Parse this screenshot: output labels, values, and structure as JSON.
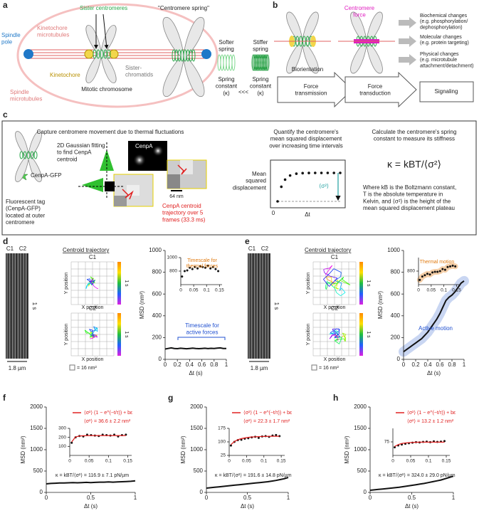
{
  "figure": {
    "a": {
      "letter": "a",
      "spindle_pole": [
        "Spindle",
        "pole"
      ],
      "kinetochore_microtubules": [
        "Kinetochore",
        "microtubules"
      ],
      "sister_centromeres": "Sister centromeres",
      "kinetochore": "Kinetochore",
      "sister_chromatids": [
        "Sister-",
        "chromatids"
      ],
      "mitotic_chromosome": "Mitotic chromosome",
      "spindle_microtubules": [
        "Spindle",
        "microtubules"
      ],
      "centromere_spring": "\"Centromere spring\"",
      "softer_spring": [
        "Softer",
        "spring"
      ],
      "stiffer_spring": [
        "Stiffer",
        "spring"
      ],
      "spring_constant_1": [
        "Spring",
        "constant",
        "(κ)"
      ],
      "less_than": "<<<",
      "spring_constant_2": [
        "Spring",
        "constant",
        "(κ)"
      ]
    },
    "b": {
      "letter": "b",
      "centromere_force": [
        "Centromere",
        "force"
      ],
      "biorientation": "Biorientation",
      "force_transmission": [
        "Force",
        "transmission"
      ],
      "force_transduction": [
        "Force",
        "transduction"
      ],
      "signaling": "Signaling",
      "biochemical": [
        "Biochemical changes",
        "(e.g. phosphorylation/",
        "dephosphorylation)"
      ],
      "molecular": [
        "Molecular changes",
        "(e.g. protein targeting)"
      ],
      "physical": [
        "Physical changes",
        "(e.g. microtubule",
        "attachment/detachment)"
      ]
    },
    "c": {
      "letter": "c",
      "capture": "Capture centromere movement due to thermal fluctuations",
      "gaussian": [
        "2D Gaussian fitting",
        "to find CenpA",
        "centroid"
      ],
      "cenpa": "CenpA",
      "cenpa_gfp": "CenpA-GFP",
      "fluorescent": [
        "Fluorescent tag",
        "(CenpA-GFP)",
        "located at outer",
        "centromere"
      ],
      "scale": "64 nm",
      "trajectory": [
        "CenpA centroid",
        "trajectory over 5",
        "frames (33.3 ms)"
      ],
      "quantify": [
        "Quantify the centromere's",
        "mean squared displacement",
        "over increasing time intervals"
      ],
      "msd_axis": [
        "Mean",
        "squared",
        "displacement"
      ],
      "plateau": "⟨σ²⟩",
      "origin": "0",
      "dt": "Δt",
      "calculate": [
        "Calculate the centromere's spring",
        "constant to measure its stiffness"
      ],
      "formula": "κ = kBT/⟨σ²⟩",
      "where": [
        "Where kB is the Boltzmann constant,",
        "T is the absolute temperature in",
        "Kelvin, and ⟨σ²⟩ is the height of the",
        "mean squared displacement plateau"
      ]
    },
    "d": {
      "letter": "d",
      "c1": "C1",
      "c2": "C2",
      "time": "1 s",
      "width": "1.8 µm",
      "centroid": "Centroid trajectory",
      "t1": "C1",
      "t2": "C2",
      "ypos1": "Y position",
      "xpos1": "X position",
      "ypos2": "Y position",
      "xpos2": "X position",
      "cbar1": "1 s",
      "cbar2": "1 s",
      "grid_unit": "= 16 nm²"
    },
    "e": {
      "letter": "e",
      "c1": "C1",
      "c2": "C2",
      "time": "1 s",
      "width": "1.8 µm",
      "centroid": "Centroid trajectory",
      "t1": "C1",
      "t2": "C2",
      "ypos1": "Y position",
      "xpos1": "X position",
      "ypos2": "Y position",
      "xpos2": "X position",
      "cbar1": "1 s",
      "cbar2": "1 s",
      "grid_unit": "= 16 nm²"
    },
    "f": {
      "letter": "f"
    },
    "g": {
      "letter": "g"
    },
    "h": {
      "letter": "h"
    }
  },
  "chart_data": [
    {
      "type": "line",
      "xlabel": "Δt (s)",
      "ylabel": "MSD (nm²)",
      "xlim": [
        0,
        1
      ],
      "ylim": [
        0,
        1000
      ],
      "xticks": [
        0,
        0.2,
        0.4,
        0.6,
        0.8,
        1
      ],
      "yticks": [
        0,
        200,
        400,
        600,
        800,
        1000
      ],
      "x": [
        0,
        0.05,
        0.1,
        0.15,
        0.2,
        0.25,
        0.3,
        0.35,
        0.4,
        0.45,
        0.5,
        0.55,
        0.6,
        0.65,
        0.7,
        0.75,
        0.8,
        0.85,
        0.9,
        0.95,
        1
      ],
      "series": [
        {
          "color": "#111111",
          "values": [
            95,
            100,
            105,
            100,
            98,
            102,
            100,
            97,
            100,
            103,
            100,
            98,
            100,
            102,
            99,
            101,
            100,
            103,
            105,
            100,
            100
          ]
        }
      ],
      "annotations": [
        [
          "Timescale for",
          "active forces"
        ]
      ]
    },
    {
      "type": "scatter",
      "xlim": [
        0,
        0.16
      ],
      "ylim": [
        600,
        1000
      ],
      "xticks": [
        0,
        0.05,
        0.1,
        0.15
      ],
      "yticks": [
        800,
        1000
      ],
      "x": [
        0.005,
        0.015,
        0.025,
        0.035,
        0.045,
        0.055,
        0.065,
        0.075,
        0.085,
        0.095,
        0.105,
        0.115,
        0.125,
        0.135,
        0.145
      ],
      "series": [
        {
          "color": "#111111",
          "values": [
            720,
            800,
            810,
            850,
            830,
            860,
            840,
            870,
            860,
            850,
            880,
            840,
            860,
            830,
            800
          ]
        }
      ],
      "annotations": [
        [
          "Timescale for",
          "thermal forces"
        ]
      ]
    },
    {
      "type": "line",
      "xlabel": "Δt (s)",
      "ylabel": "MSD (nm²)",
      "xlim": [
        0,
        1
      ],
      "ylim": [
        0,
        1000
      ],
      "xticks": [
        0,
        0.2,
        0.4,
        0.6,
        0.8,
        1
      ],
      "yticks": [
        0,
        200,
        400,
        600,
        800,
        1000
      ],
      "highlight": "#c9d6f2",
      "x": [
        0,
        0.05,
        0.1,
        0.15,
        0.2,
        0.25,
        0.3,
        0.35,
        0.4,
        0.45,
        0.5,
        0.55,
        0.6,
        0.65,
        0.7,
        0.75,
        0.8,
        0.85,
        0.9,
        0.95,
        1
      ],
      "series": [
        {
          "color": "#111111",
          "values": [
            70,
            90,
            110,
            130,
            150,
            170,
            190,
            220,
            250,
            290,
            330,
            370,
            420,
            480,
            540,
            570,
            590,
            620,
            660,
            700,
            720
          ]
        }
      ],
      "annotations": [
        "Active motion"
      ]
    },
    {
      "type": "scatter",
      "xlim": [
        0,
        0.16
      ],
      "ylim": [
        600,
        1000
      ],
      "xticks": [
        0,
        0.05,
        0.1,
        0.15
      ],
      "yticks": [
        800
      ],
      "highlight": "#f5cfa8",
      "x": [
        0.005,
        0.015,
        0.025,
        0.035,
        0.045,
        0.055,
        0.065,
        0.075,
        0.085,
        0.095,
        0.105,
        0.115,
        0.125,
        0.135,
        0.145
      ],
      "series": [
        {
          "color": "#111111",
          "values": [
            670,
            720,
            740,
            760,
            750,
            780,
            790,
            790,
            800,
            830,
            820,
            860,
            870,
            880,
            870
          ]
        }
      ],
      "annotations": [
        "Thermal motion"
      ]
    },
    {
      "type": "line",
      "xlabel": "Δt (s)",
      "ylabel": "MSD (nm²)",
      "xlim": [
        0,
        1
      ],
      "ylim": [
        0,
        2000
      ],
      "xticks": [
        0,
        0.5,
        1
      ],
      "yticks": [
        0,
        500,
        1000,
        1500,
        2000
      ],
      "x": [
        0,
        0.05,
        0.1,
        0.15,
        0.2,
        0.25,
        0.3,
        0.35,
        0.4,
        0.45,
        0.5,
        0.55,
        0.6,
        0.65,
        0.7,
        0.75,
        0.8,
        0.85,
        0.9,
        0.95,
        1
      ],
      "series": [
        {
          "color": "#111111",
          "values": [
            200,
            210,
            215,
            220,
            220,
            225,
            230,
            225,
            230,
            235,
            230,
            235,
            240,
            240,
            245,
            240,
            245,
            250,
            255,
            260,
            270
          ]
        }
      ]
    },
    {
      "type": "scatter",
      "xlim": [
        0,
        0.16
      ],
      "ylim": [
        0,
        300
      ],
      "xticks": [
        0,
        0.05,
        0.1,
        0.15
      ],
      "yticks": [
        100,
        200,
        300
      ],
      "x": [
        0.005,
        0.015,
        0.025,
        0.035,
        0.045,
        0.055,
        0.065,
        0.075,
        0.085,
        0.095,
        0.105,
        0.115,
        0.125,
        0.135,
        0.145
      ],
      "series": [
        {
          "color": "#111111",
          "values": [
            140,
            200,
            215,
            210,
            230,
            225,
            220,
            215,
            230,
            225,
            220,
            230,
            210,
            225,
            230
          ]
        },
        {
          "type": "line",
          "name": "⟨σ²⟩ (1 − e^(−t/τ)) + bε",
          "color": "#e02020",
          "values": [
            150,
            205,
            215,
            218,
            219,
            220,
            220,
            220,
            220,
            220,
            220,
            220,
            220,
            220,
            220
          ]
        }
      ],
      "annotations": [
        "⟨σ²⟩ = 36.6 ± 2.2 nm²",
        "κ = kBT/⟨σ²⟩ = 116.9 ± 7.1 pN/µm"
      ]
    },
    {
      "type": "line",
      "xlabel": "Δt (s)",
      "ylabel": "MSD (nm²)",
      "xlim": [
        0,
        1
      ],
      "ylim": [
        0,
        2000
      ],
      "xticks": [
        0,
        0.5,
        1
      ],
      "yticks": [
        0,
        500,
        1000,
        1500,
        2000
      ],
      "x": [
        0,
        0.05,
        0.1,
        0.15,
        0.2,
        0.25,
        0.3,
        0.35,
        0.4,
        0.45,
        0.5,
        0.55,
        0.6,
        0.65,
        0.7,
        0.75,
        0.8,
        0.85,
        0.9,
        0.95,
        1
      ],
      "series": [
        {
          "color": "#111111",
          "values": [
            100,
            110,
            120,
            130,
            140,
            150,
            160,
            170,
            180,
            190,
            200,
            210,
            220,
            230,
            240,
            250,
            265,
            280,
            300,
            320,
            350
          ]
        }
      ]
    },
    {
      "type": "scatter",
      "xlim": [
        0,
        0.16
      ],
      "ylim": [
        25,
        175
      ],
      "xticks": [
        0,
        0.05,
        0.1,
        0.15
      ],
      "yticks": [
        25,
        100,
        175
      ],
      "x": [
        0.005,
        0.015,
        0.025,
        0.035,
        0.045,
        0.055,
        0.065,
        0.075,
        0.085,
        0.095,
        0.105,
        0.115,
        0.125,
        0.135,
        0.145
      ],
      "series": [
        {
          "color": "#111111",
          "values": [
            80,
            100,
            110,
            112,
            118,
            120,
            125,
            128,
            122,
            130,
            132,
            128,
            135,
            138,
            132
          ]
        },
        {
          "type": "line",
          "name": "⟨σ²⟩ (1 − e^(−t/τ)) + bε",
          "color": "#e02020",
          "values": [
            85,
            102,
            112,
            118,
            122,
            125,
            127,
            128,
            129,
            130,
            130,
            131,
            131,
            131,
            131
          ]
        }
      ],
      "annotations": [
        "⟨σ²⟩ = 22.3 ± 1.7 nm²",
        "κ = kBT/⟨σ²⟩ = 191.6 ± 14.8 pN/µm"
      ]
    },
    {
      "type": "line",
      "xlabel": "Δt (s)",
      "ylabel": "MSD (nm²)",
      "xlim": [
        0,
        1
      ],
      "ylim": [
        0,
        2000
      ],
      "xticks": [
        0,
        0.5,
        1
      ],
      "yticks": [
        0,
        500,
        1000,
        1500,
        2000
      ],
      "x": [
        0,
        0.05,
        0.1,
        0.15,
        0.2,
        0.25,
        0.3,
        0.35,
        0.4,
        0.45,
        0.5,
        0.55,
        0.6,
        0.65,
        0.7,
        0.75,
        0.8,
        0.85,
        0.9,
        0.95,
        1
      ],
      "series": [
        {
          "color": "#111111",
          "values": [
            50,
            60,
            70,
            80,
            90,
            100,
            110,
            120,
            135,
            150,
            165,
            180,
            195,
            210,
            230,
            250,
            270,
            290,
            320,
            350,
            380
          ]
        }
      ]
    },
    {
      "type": "scatter",
      "xlim": [
        0,
        0.16
      ],
      "ylim": [
        25,
        125
      ],
      "xticks": [
        0,
        0.05,
        0.1,
        0.15
      ],
      "yticks": [
        75
      ],
      "x": [
        0.005,
        0.015,
        0.025,
        0.035,
        0.045,
        0.055,
        0.065,
        0.075,
        0.085,
        0.095,
        0.105,
        0.115,
        0.125,
        0.135,
        0.145
      ],
      "series": [
        {
          "color": "#111111",
          "values": [
            55,
            62,
            65,
            68,
            70,
            72,
            74,
            73,
            75,
            76,
            74,
            77,
            75,
            76,
            78
          ]
        },
        {
          "type": "line",
          "name": "⟨σ²⟩ (1 − e^(−t/τ)) + bε",
          "color": "#e02020",
          "values": [
            58,
            65,
            69,
            71,
            72,
            73,
            73.5,
            74,
            74,
            74,
            74,
            74,
            74,
            74,
            74
          ]
        }
      ],
      "annotations": [
        "⟨σ²⟩ = 13.2 ± 1.2 nm²",
        "κ = kBT/⟨σ²⟩ = 324.0 ± 29.0 pN/µm"
      ]
    }
  ]
}
